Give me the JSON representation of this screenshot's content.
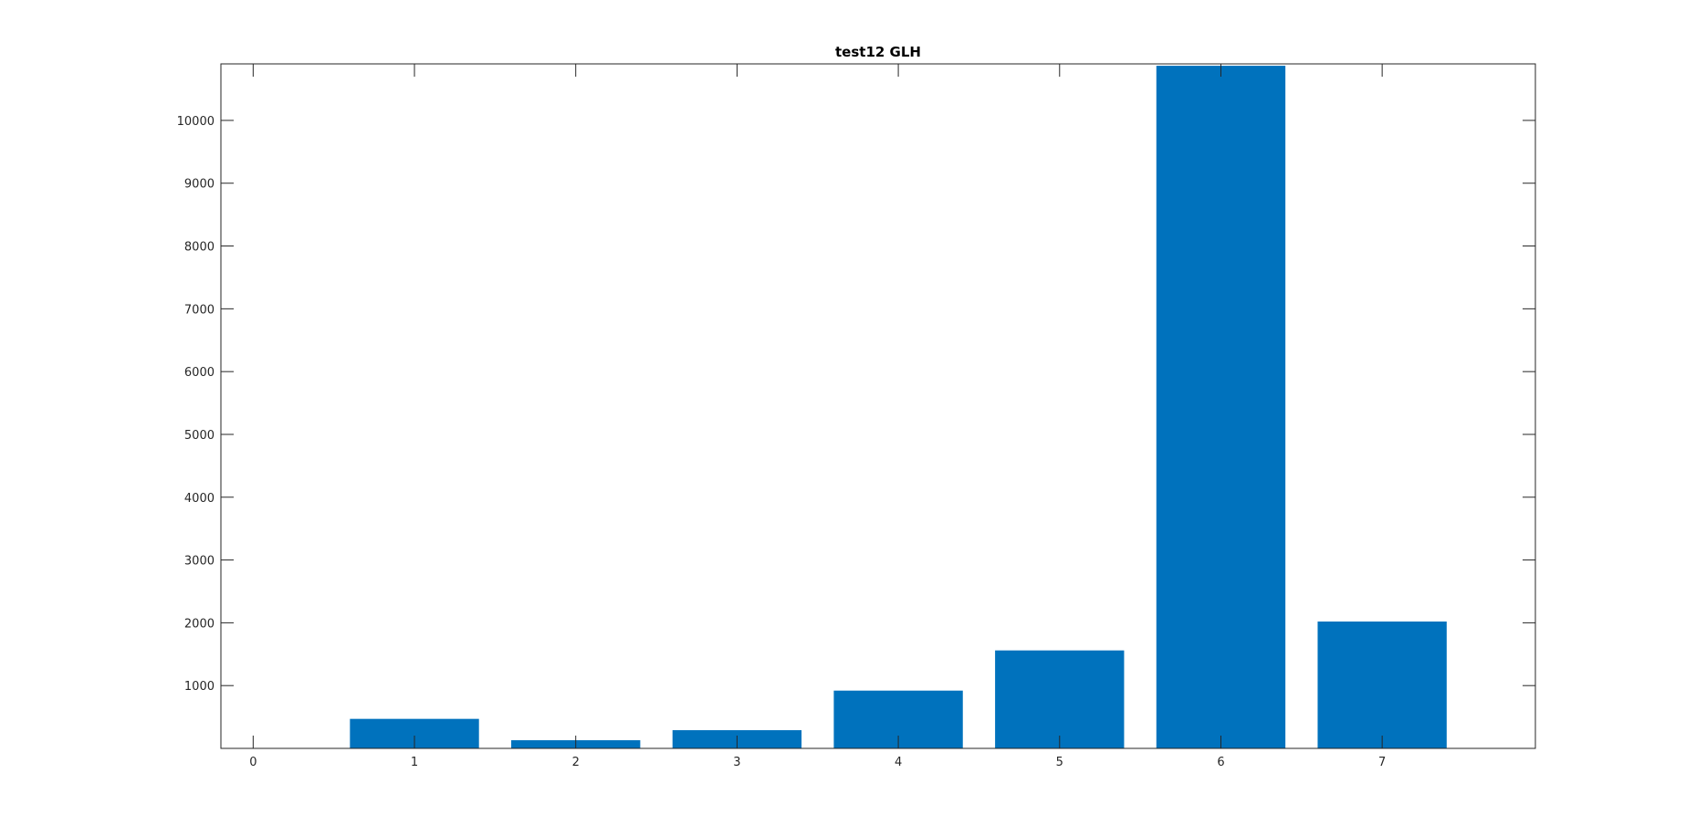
{
  "chart_data": {
    "type": "bar",
    "title": "test12 GLH",
    "xlabel": "",
    "ylabel": "",
    "categories": [
      "0",
      "1",
      "2",
      "3",
      "4",
      "5",
      "6",
      "7"
    ],
    "x": [
      0,
      1,
      2,
      3,
      4,
      5,
      6,
      7
    ],
    "values": [
      0,
      470,
      130,
      290,
      920,
      1560,
      10870,
      2020
    ],
    "xlim": [
      -0.2,
      7.95
    ],
    "ylim": [
      0,
      10900
    ],
    "xticks": [
      0,
      1,
      2,
      3,
      4,
      5,
      6,
      7
    ],
    "yticks": [
      1000,
      2000,
      3000,
      4000,
      5000,
      6000,
      7000,
      8000,
      9000,
      10000
    ],
    "bar_width": 0.8,
    "bar_color": "#0072BD",
    "grid": false
  }
}
